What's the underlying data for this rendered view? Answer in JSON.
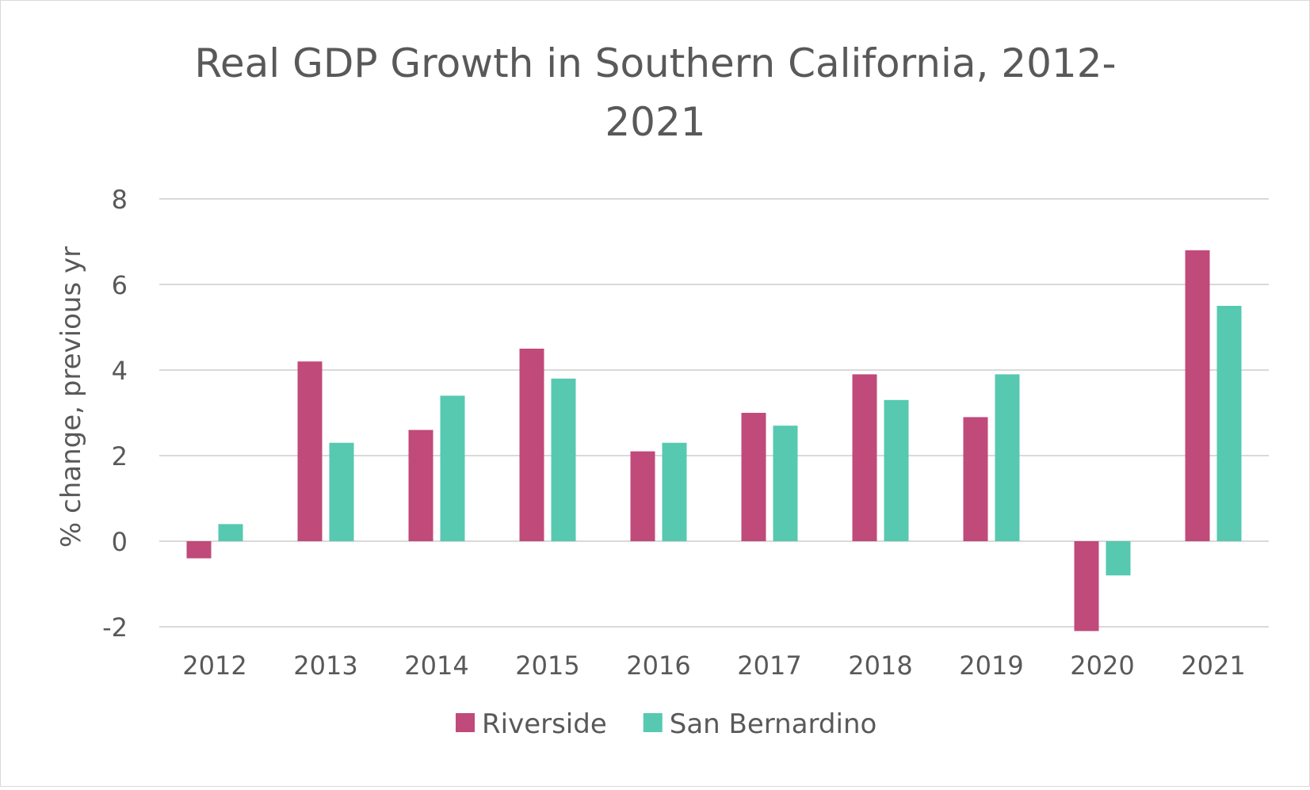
{
  "chart_data": {
    "type": "bar",
    "title": "Real GDP Growth in Southern California, 2012-2021",
    "title_lines": [
      "Real GDP Growth in Southern California, 2012-",
      "2021"
    ],
    "xlabel": "",
    "ylabel": "% change, previous yr",
    "categories": [
      "2012",
      "2013",
      "2014",
      "2015",
      "2016",
      "2017",
      "2018",
      "2019",
      "2020",
      "2021"
    ],
    "series": [
      {
        "name": "Riverside",
        "color": "#c04a7a",
        "values": [
          -0.4,
          4.2,
          2.6,
          4.5,
          2.1,
          3.0,
          3.9,
          2.9,
          -2.1,
          6.8
        ]
      },
      {
        "name": "San Bernardino",
        "color": "#56c9b0",
        "values": [
          0.4,
          2.3,
          3.4,
          3.8,
          2.3,
          2.7,
          3.3,
          3.9,
          -0.8,
          5.5
        ]
      }
    ],
    "ylim": [
      -2,
      8
    ],
    "yticks": [
      "-2",
      "0",
      "2",
      "4",
      "6",
      "8"
    ],
    "grid": true,
    "legend": "bottom"
  }
}
